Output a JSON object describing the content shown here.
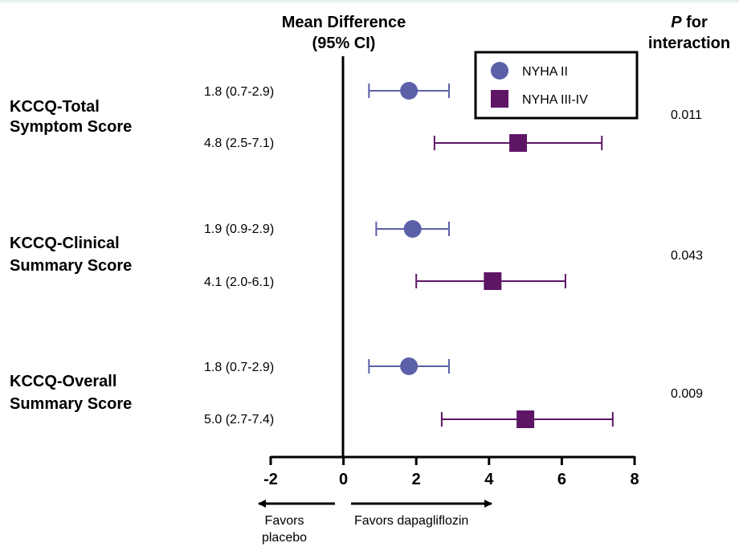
{
  "colors": {
    "nyha2": "#5b60a8",
    "nyha34": "#5e1566",
    "axis": "#000000"
  },
  "header": {
    "mean_diff_line1": "Mean Difference",
    "mean_diff_line2": "(95% CI)",
    "p_line1_italic": "P",
    "p_line1_rest": " for",
    "p_line2": "interaction"
  },
  "legend": {
    "items": [
      "NYHA II",
      "NYHA III-IV"
    ],
    "placement": "top-right"
  },
  "arrows": {
    "left_line1": "Favors",
    "left_line2": "placebo",
    "right": "Favors dapagliflozin"
  },
  "chart_data": {
    "type": "scatter",
    "subtype": "forest-plot",
    "xlim": [
      -2,
      8
    ],
    "xticks": [
      "-2",
      "0",
      "2",
      "4",
      "6",
      "8"
    ],
    "reference_line": 0,
    "series": [
      {
        "name": "NYHA II",
        "marker": "circle"
      },
      {
        "name": "NYHA III-IV",
        "marker": "square"
      }
    ],
    "outcomes": [
      {
        "label_line1": "KCCQ-Total",
        "label_line2": "Symptom Score",
        "p_interaction": "0.011",
        "rows": [
          {
            "series": "NYHA II",
            "text": "1.8 (0.7-2.9)",
            "estimate": 1.8,
            "low": 0.7,
            "high": 2.9
          },
          {
            "series": "NYHA III-IV",
            "text": "4.8 (2.5-7.1)",
            "estimate": 4.8,
            "low": 2.5,
            "high": 7.1
          }
        ]
      },
      {
        "label_line1": "KCCQ-Clinical",
        "label_line2": "Summary Score",
        "p_interaction": "0.043",
        "rows": [
          {
            "series": "NYHA II",
            "text": "1.9 (0.9-2.9)",
            "estimate": 1.9,
            "low": 0.9,
            "high": 2.9
          },
          {
            "series": "NYHA III-IV",
            "text": "4.1 (2.0-6.1)",
            "estimate": 4.1,
            "low": 2.0,
            "high": 6.1
          }
        ]
      },
      {
        "label_line1": "KCCQ-Overall",
        "label_line2": "Summary Score",
        "p_interaction": "0.009",
        "rows": [
          {
            "series": "NYHA II",
            "text": "1.8 (0.7-2.9)",
            "estimate": 1.8,
            "low": 0.7,
            "high": 2.9
          },
          {
            "series": "NYHA III-IV",
            "text": "5.0 (2.7-7.4)",
            "estimate": 5.0,
            "low": 2.7,
            "high": 7.4
          }
        ]
      }
    ]
  }
}
